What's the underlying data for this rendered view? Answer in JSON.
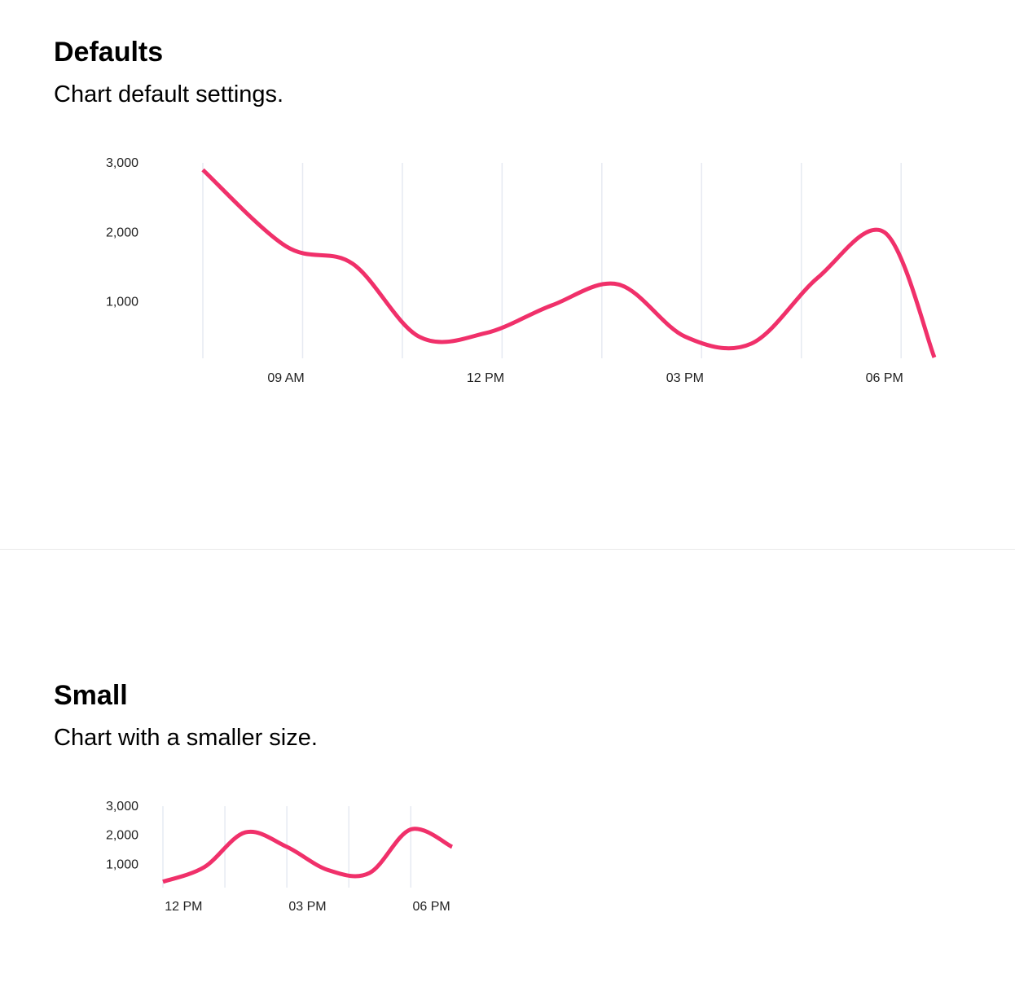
{
  "sections": {
    "defaults": {
      "title": "Defaults",
      "description": "Chart default settings."
    },
    "small": {
      "title": "Small",
      "description": "Chart with a smaller size."
    }
  },
  "colors": {
    "series": "#f0306a",
    "grid": "#e6eaf2",
    "text": "#222222"
  },
  "chart_data": [
    {
      "type": "line",
      "title": "",
      "xlabel": "",
      "ylabel": "",
      "ylim": [
        0,
        3000
      ],
      "yticks": [
        "3,000",
        "2,000",
        "1,000"
      ],
      "xticks": [
        "09 AM",
        "12 PM",
        "03 PM",
        "06 PM"
      ],
      "grid": "vertical",
      "series": [
        {
          "x": [
            "07:45",
            "09:00",
            "10:00",
            "11:00",
            "12:00",
            "13:00",
            "14:00",
            "15:00",
            "16:00",
            "17:00",
            "18:00",
            "18:45"
          ],
          "values": [
            2900,
            1800,
            1550,
            500,
            550,
            950,
            1250,
            500,
            400,
            1350,
            2000,
            200
          ]
        }
      ]
    },
    {
      "type": "line",
      "title": "",
      "xlabel": "",
      "ylabel": "",
      "ylim": [
        0,
        3000
      ],
      "yticks": [
        "3,000",
        "2,000",
        "1,000"
      ],
      "xticks": [
        "12 PM",
        "03 PM",
        "06 PM"
      ],
      "grid": "vertical",
      "series": [
        {
          "x": [
            "11:30",
            "12:30",
            "13:30",
            "14:30",
            "15:30",
            "16:30",
            "17:30",
            "18:30"
          ],
          "values": [
            400,
            900,
            2100,
            1600,
            800,
            700,
            2200,
            1600
          ]
        }
      ]
    }
  ]
}
